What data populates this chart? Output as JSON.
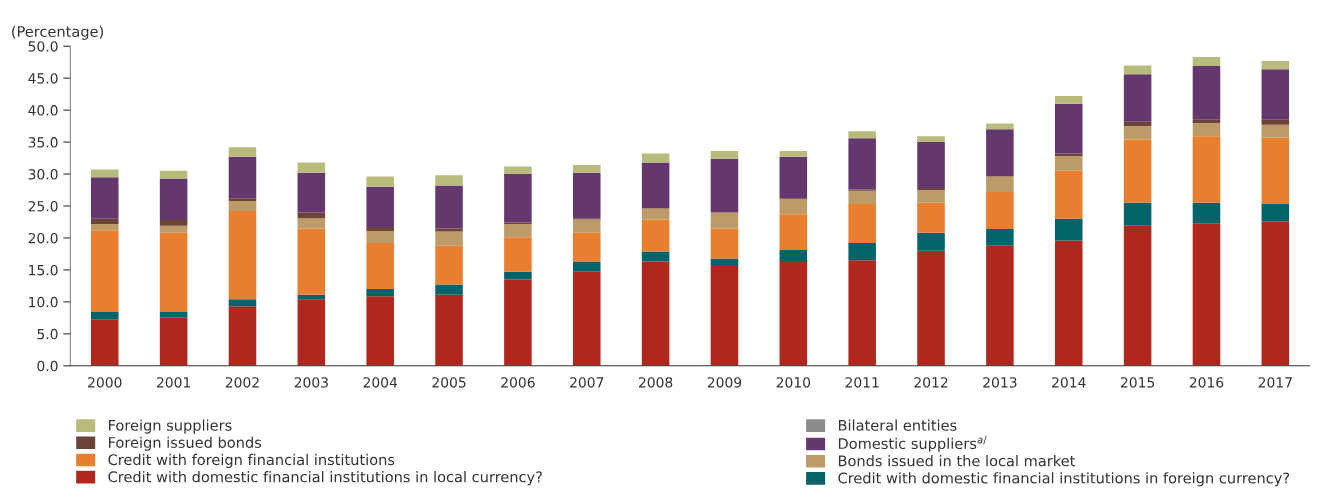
{
  "chart_data": {
    "type": "bar",
    "stacked": true,
    "ylabel": "(Percentage)",
    "categories": [
      "2000",
      "2001",
      "2002",
      "2003",
      "2004",
      "2005",
      "2006",
      "2007",
      "2008",
      "2009",
      "2010",
      "2011",
      "2012",
      "2013",
      "2014",
      "2015",
      "2016",
      "2017"
    ],
    "series": [
      {
        "name": "Credit with domestic financial institutions in local currency?",
        "color": "#b0281d",
        "values": [
          7.3,
          7.5,
          9.3,
          10.4,
          10.9,
          11.1,
          13.5,
          14.7,
          16.3,
          15.6,
          16.4,
          16.5,
          18.0,
          18.8,
          19.6,
          21.9,
          22.3,
          22.6
        ]
      },
      {
        "name": "Credit with domestic financial institutions in foreign currency?",
        "color": "#02646a",
        "values": [
          1.1,
          0.9,
          1.1,
          0.7,
          1.1,
          1.6,
          1.2,
          1.6,
          1.6,
          1.2,
          1.7,
          2.7,
          2.8,
          2.6,
          3.4,
          3.6,
          3.2,
          2.7
        ]
      },
      {
        "name": "Credit with foreign financial institutions",
        "color": "#e97e2f",
        "values": [
          12.8,
          12.4,
          13.8,
          10.4,
          7.2,
          6.1,
          5.4,
          4.5,
          5.0,
          4.7,
          5.6,
          6.1,
          4.7,
          5.8,
          7.5,
          9.9,
          10.4,
          10.4
        ]
      },
      {
        "name": "Bonds issued in the local market",
        "color": "#bd9b69",
        "values": [
          1.0,
          1.1,
          1.6,
          1.6,
          1.9,
          2.2,
          2.1,
          2.1,
          1.7,
          2.5,
          2.4,
          2.1,
          2.0,
          2.4,
          2.3,
          2.1,
          2.1,
          2.0
        ]
      },
      {
        "name": "Bilateral entities",
        "color": "#8c8c8c",
        "values": [
          0,
          0,
          0,
          0,
          0,
          0,
          0,
          0,
          0,
          0,
          0,
          0,
          0,
          0,
          0,
          0,
          0,
          0
        ]
      },
      {
        "name": "Foreign issued bonds",
        "color": "#6b4437",
        "values": [
          0.8,
          0.9,
          0.4,
          0.9,
          0.6,
          0.5,
          0.2,
          0.2,
          0.1,
          null,
          0.1,
          0.2,
          0.3,
          0.1,
          0.4,
          0.7,
          0.5,
          0.8
        ]
      },
      {
        "name": "Domestic suppliers$^{a/}$",
        "color": "#64386f",
        "values": [
          6.5,
          6.5,
          6.5,
          6.2,
          6.3,
          6.7,
          7.6,
          7.1,
          7.1,
          8.4,
          6.5,
          8.0,
          7.2,
          7.3,
          7.8,
          7.4,
          8.4,
          7.9
        ]
      },
      {
        "name": "Foreign suppliers",
        "color": "#b9bb7d",
        "values": [
          1.2,
          1.2,
          1.5,
          1.6,
          1.6,
          1.6,
          1.2,
          1.2,
          1.4,
          1.2,
          0.9,
          1.1,
          0.9,
          0.9,
          1.2,
          1.4,
          1.4,
          1.3
        ]
      }
    ],
    "ylim": [
      0,
      50
    ],
    "yticks": [
      {
        "value": 0,
        "label": "0.0"
      },
      {
        "value": 5,
        "label": "5.0"
      },
      {
        "value": 10,
        "label": "10.0"
      },
      {
        "value": 15,
        "label": "15.0"
      },
      {
        "value": 20,
        "label": "20.0"
      },
      {
        "value": 25,
        "label": "25.0"
      },
      {
        "value": 30,
        "label": "30.0"
      },
      {
        "value": 35,
        "label": "35.0"
      },
      {
        "value": 40,
        "label": "40.0"
      },
      {
        "value": 45,
        "label": "45.0"
      },
      {
        "value": 50,
        "label": "50.0"
      }
    ],
    "grid": false,
    "legend": "bottom"
  }
}
